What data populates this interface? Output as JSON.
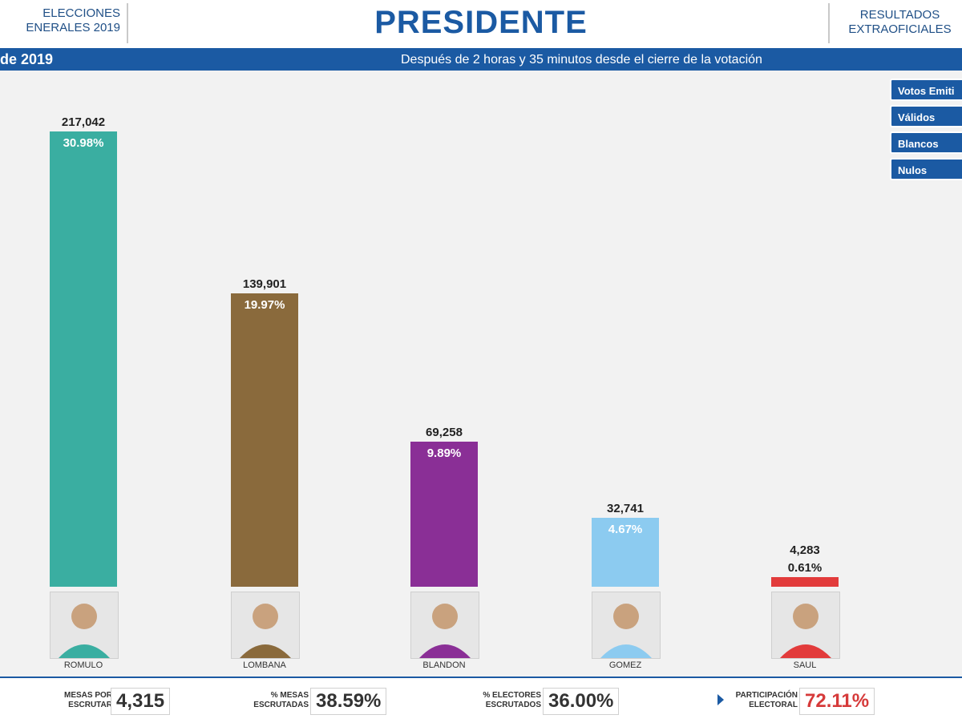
{
  "header": {
    "left_line1": "ELECCIONES",
    "left_line2": "ENERALES 2019",
    "title": "PRESIDENTE",
    "right_line1": "RESULTADOS",
    "right_line2": "EXTRAOFICIALES"
  },
  "banner": {
    "date": "de 2019",
    "subtitle": "Después de 2 horas y 35 minutos desde el cierre de la votación"
  },
  "side_buttons": [
    "Votos Emiti",
    "Válidos",
    "Blancos",
    "Nulos"
  ],
  "chart_data": {
    "type": "bar",
    "categories": [
      "ROMULO",
      "LOMBANA",
      "BLANDON",
      "GOMEZ",
      "SAUL"
    ],
    "values": [
      217042,
      139901,
      69258,
      32741,
      4283
    ],
    "value_labels": [
      "217,042",
      "139,901",
      "69,258",
      "32,741",
      "4,283"
    ],
    "percentages": [
      "30.98%",
      "19.97%",
      "9.89%",
      "4.67%",
      "0.61%"
    ],
    "colors": [
      "#3aaea1",
      "#8a6a3c",
      "#8a2f96",
      "#8ccbf0",
      "#e23b3b"
    ],
    "grid": false
  },
  "footer": {
    "mesas_label_1": "MESAS POR",
    "mesas_label_2": "ESCRUTAR",
    "mesas_value": "4,315",
    "pct_mesas_label_1": "% MESAS",
    "pct_mesas_label_2": "ESCRUTADAS",
    "pct_mesas_value": "38.59%",
    "pct_electores_label_1": "% ELECTORES",
    "pct_electores_label_2": "ESCRUTADOS",
    "pct_electores_value": "36.00%",
    "participacion_label_1": "PARTICIPACIÓN",
    "participacion_label_2": "ELECTORAL",
    "participacion_value": "72.11%",
    "participacion_color": "#d63a3a"
  }
}
